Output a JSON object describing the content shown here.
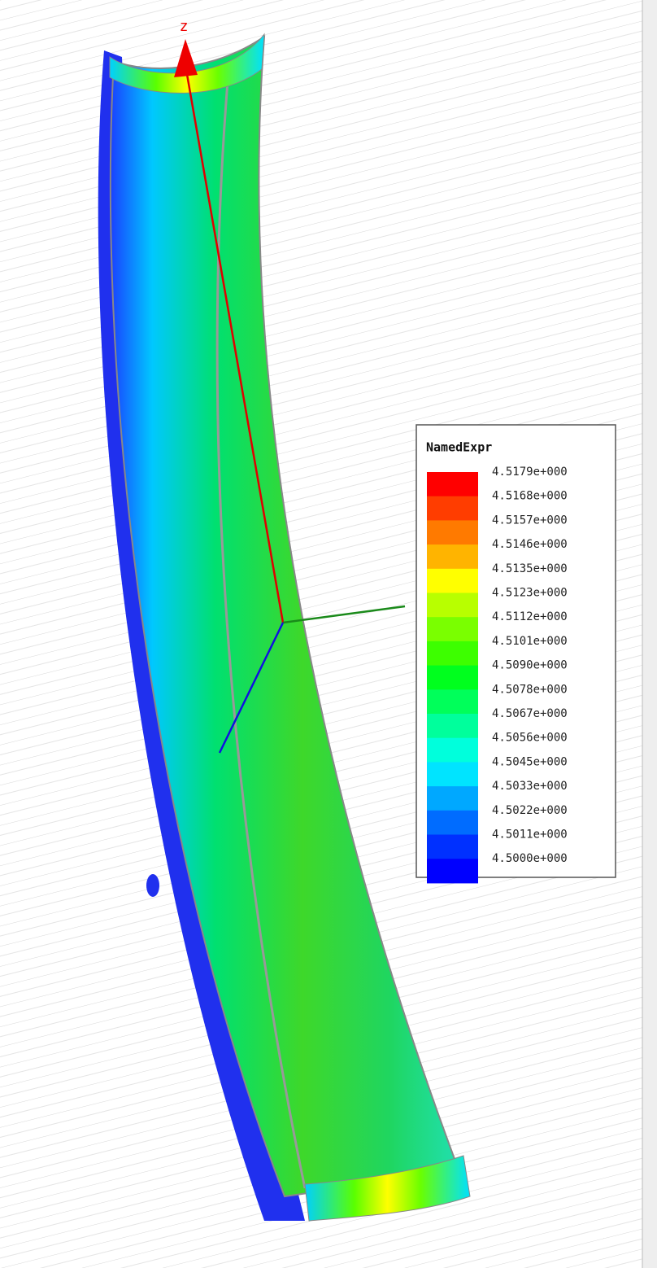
{
  "axis": {
    "z": "z"
  },
  "legend": {
    "title": "NamedExpr",
    "entries": [
      {
        "label": "4.5179e+000",
        "color": "#ff0000"
      },
      {
        "label": "4.5168e+000",
        "color": "#ff3d00"
      },
      {
        "label": "4.5157e+000",
        "color": "#ff7a00"
      },
      {
        "label": "4.5146e+000",
        "color": "#ffb400"
      },
      {
        "label": "4.5135e+000",
        "color": "#ffff00"
      },
      {
        "label": "4.5123e+000",
        "color": "#b8ff00"
      },
      {
        "label": "4.5112e+000",
        "color": "#7aff00"
      },
      {
        "label": "4.5101e+000",
        "color": "#3dff00"
      },
      {
        "label": "4.5090e+000",
        "color": "#00ff1e"
      },
      {
        "label": "4.5078e+000",
        "color": "#00ff5a"
      },
      {
        "label": "4.5067e+000",
        "color": "#00ff9c"
      },
      {
        "label": "4.5056e+000",
        "color": "#00ffdc"
      },
      {
        "label": "4.5045e+000",
        "color": "#00e4ff"
      },
      {
        "label": "4.5033e+000",
        "color": "#00a8ff"
      },
      {
        "label": "4.5022e+000",
        "color": "#006cff"
      },
      {
        "label": "4.5011e+000",
        "color": "#0030ff"
      },
      {
        "label": "4.5000e+000",
        "color": "#0000ff"
      }
    ]
  }
}
